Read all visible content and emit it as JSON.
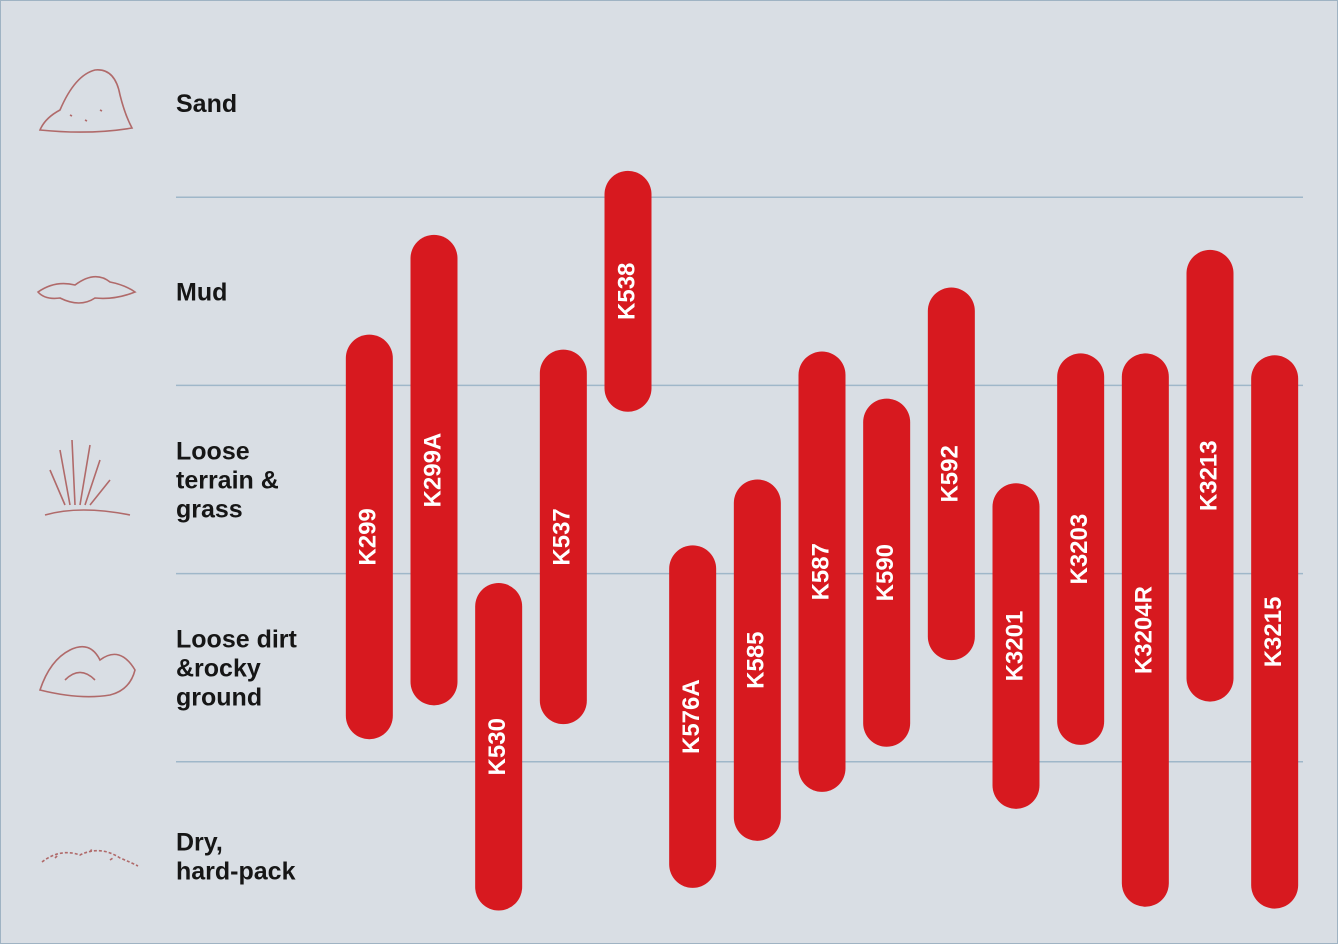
{
  "chart_data": {
    "type": "range-bar",
    "row_labels": [
      [
        "Sand"
      ],
      [
        "Mud"
      ],
      [
        "Loose",
        "terrain &",
        "grass"
      ],
      [
        "Loose dirt",
        "&rocky",
        "ground"
      ],
      [
        "Dry,",
        "hard-pack"
      ]
    ],
    "ylim": [
      0,
      5
    ],
    "grid_lines": [
      1,
      2,
      3,
      4
    ],
    "color": "#d7191f",
    "bars": [
      {
        "name": "K299",
        "low": 1.12,
        "high": 3.27
      },
      {
        "name": "K299A",
        "low": 1.3,
        "high": 3.8
      },
      {
        "name": "K530",
        "low": 0.21,
        "high": 1.95
      },
      {
        "name": "K537",
        "low": 1.2,
        "high": 3.19
      },
      {
        "name": "K538",
        "low": 2.86,
        "high": 4.14
      },
      {
        "name": "K576A",
        "low": 0.33,
        "high": 2.15
      },
      {
        "name": "K585",
        "low": 0.58,
        "high": 2.5
      },
      {
        "name": "K587",
        "low": 0.84,
        "high": 3.18
      },
      {
        "name": "K590",
        "low": 1.08,
        "high": 2.93
      },
      {
        "name": "K592",
        "low": 1.54,
        "high": 3.52
      },
      {
        "name": "K3201",
        "low": 0.75,
        "high": 2.48
      },
      {
        "name": "K3203",
        "low": 1.09,
        "high": 3.17
      },
      {
        "name": "K3204R",
        "low": 0.23,
        "high": 3.17
      },
      {
        "name": "K3213",
        "low": 1.32,
        "high": 3.72
      },
      {
        "name": "K3215",
        "low": 0.22,
        "high": 3.16
      }
    ]
  }
}
